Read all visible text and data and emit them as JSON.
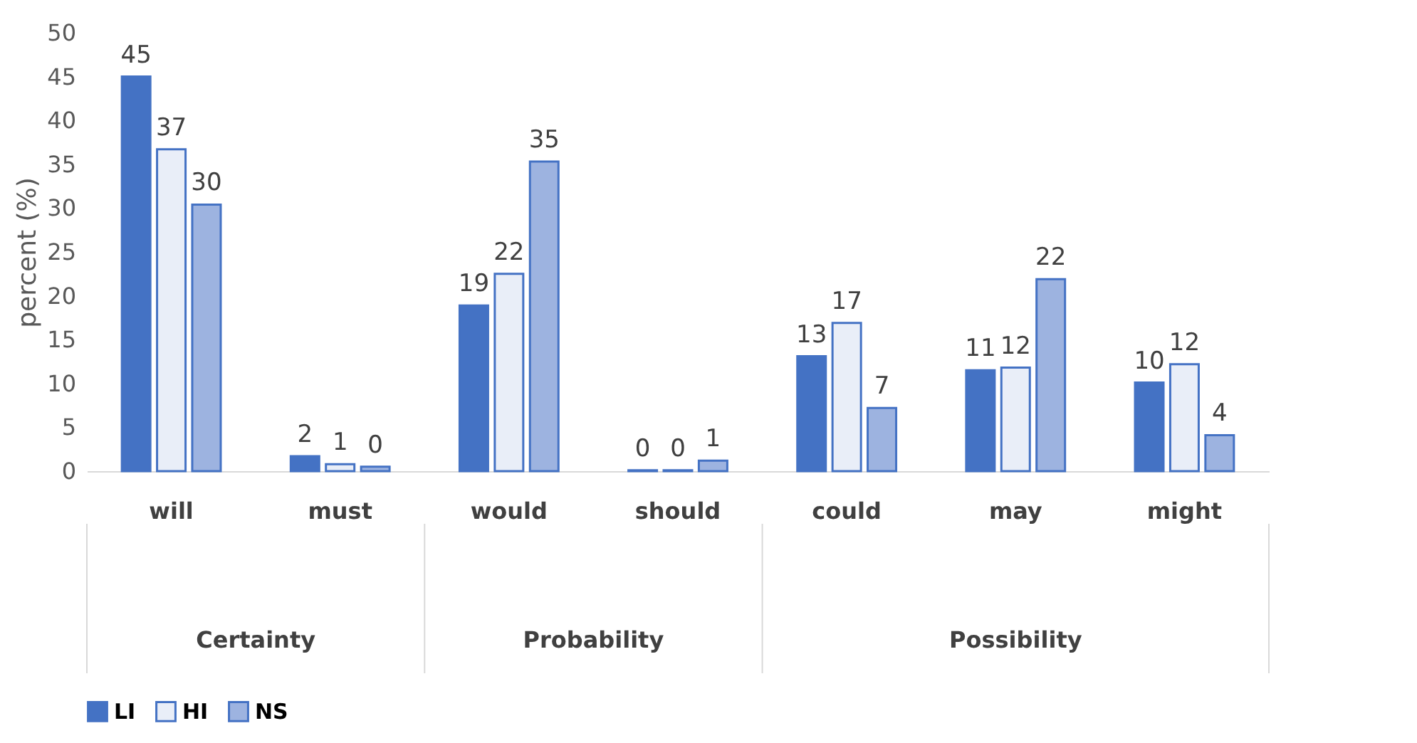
{
  "chart_data": {
    "type": "bar",
    "ylabel": "percent (%)",
    "categories": [
      "will",
      "must",
      "would",
      "should",
      "could",
      "may",
      "might"
    ],
    "series": [
      {
        "name": "LI",
        "color": "#4472c4",
        "values": [
          45,
          1.7,
          18.9,
          0.1,
          13.1,
          11.5,
          10.1
        ],
        "value_labels": [
          "45",
          "2",
          "19",
          "0",
          "13",
          "11",
          "10"
        ]
      },
      {
        "name": "HI",
        "color": "#e9eef8",
        "values": [
          36.7,
          0.8,
          22.5,
          0.1,
          16.9,
          11.8,
          12.2
        ],
        "value_labels": [
          "37",
          "1",
          "22",
          "0",
          "17",
          "12",
          "12"
        ]
      },
      {
        "name": "NS",
        "color": "#9db3e0",
        "values": [
          30.4,
          0.5,
          35.3,
          1.2,
          7.2,
          21.9,
          4.1
        ],
        "value_labels": [
          "30",
          "0",
          "35",
          "1",
          "7",
          "22",
          "4"
        ]
      }
    ],
    "annotations": [
      "Certainty",
      "Probability",
      "Possibility"
    ],
    "ylim": [
      0,
      50
    ],
    "yticks": [
      0,
      5,
      10,
      15,
      20,
      25,
      30,
      35,
      40,
      45,
      50
    ],
    "grid": false,
    "legend": "bottom"
  }
}
